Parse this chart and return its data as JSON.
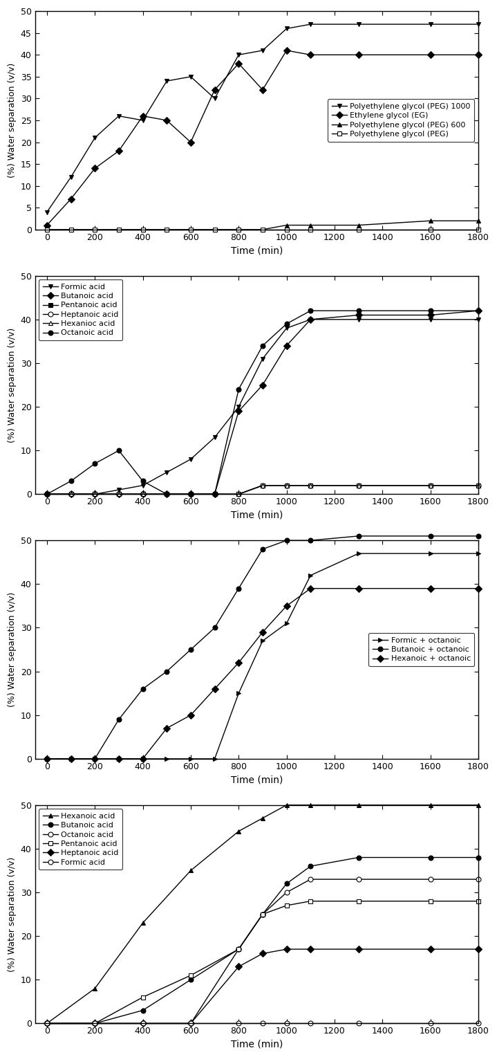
{
  "chart1": {
    "ylabel": "(%) Water separation (v/v)",
    "xlabel": "Time (min)",
    "series": [
      {
        "label": "Polyethylene glycol (PEG) 1000",
        "marker": "v",
        "filled": true,
        "x": [
          0,
          100,
          200,
          300,
          400,
          500,
          600,
          700,
          800,
          900,
          1000,
          1100,
          1300,
          1600,
          1800
        ],
        "y": [
          4,
          12,
          21,
          26,
          25,
          34,
          35,
          30,
          40,
          41,
          46,
          47,
          47,
          47,
          47
        ]
      },
      {
        "label": "Ethylene glycol (EG)",
        "marker": "D",
        "filled": true,
        "x": [
          0,
          100,
          200,
          300,
          400,
          500,
          600,
          700,
          800,
          900,
          1000,
          1100,
          1300,
          1600,
          1800
        ],
        "y": [
          1,
          7,
          14,
          18,
          26,
          25,
          20,
          32,
          38,
          32,
          41,
          40,
          40,
          40,
          40
        ]
      },
      {
        "label": "Polyethylene glycol (PEG) 600",
        "marker": "^",
        "filled": true,
        "x": [
          0,
          100,
          200,
          300,
          400,
          500,
          600,
          700,
          800,
          900,
          1000,
          1100,
          1300,
          1600,
          1800
        ],
        "y": [
          0,
          0,
          0,
          0,
          0,
          0,
          0,
          0,
          0,
          0,
          1,
          1,
          1,
          2,
          2
        ]
      },
      {
        "label": "Polyethylene glycol (PEG)",
        "marker": "s",
        "filled": false,
        "x": [
          0,
          100,
          200,
          300,
          400,
          500,
          600,
          700,
          800,
          900,
          1000,
          1100,
          1300,
          1600,
          1800
        ],
        "y": [
          0,
          0,
          0,
          0,
          0,
          0,
          0,
          0,
          0,
          0,
          0,
          0,
          0,
          0,
          0
        ]
      }
    ],
    "ylim": [
      0,
      50
    ],
    "xlim": [
      -50,
      1800
    ],
    "xticks": [
      0,
      200,
      400,
      600,
      800,
      1000,
      1200,
      1400,
      1600,
      1800
    ],
    "yticks": [
      0,
      5,
      10,
      15,
      20,
      25,
      30,
      35,
      40,
      45,
      50
    ],
    "legend_loc": "center right",
    "legend_bbox": null
  },
  "chart2": {
    "ylabel": "(%) Water separation (v/v)",
    "xlabel": "Time (min)",
    "series": [
      {
        "label": "Formic acid",
        "marker": "v",
        "filled": true,
        "x": [
          0,
          100,
          200,
          300,
          400,
          500,
          600,
          700,
          800,
          900,
          1000,
          1100,
          1300,
          1600,
          1800
        ],
        "y": [
          0,
          0,
          0,
          1,
          2,
          5,
          8,
          13,
          20,
          31,
          38,
          40,
          40,
          40,
          40
        ]
      },
      {
        "label": "Butanoic acid",
        "marker": "D",
        "filled": true,
        "x": [
          0,
          100,
          200,
          300,
          400,
          500,
          600,
          700,
          800,
          900,
          1000,
          1100,
          1300,
          1600,
          1800
        ],
        "y": [
          0,
          0,
          0,
          0,
          0,
          0,
          0,
          0,
          19,
          25,
          34,
          40,
          41,
          41,
          42
        ]
      },
      {
        "label": "Pentanoic acid",
        "marker": "s",
        "filled": true,
        "x": [
          0,
          100,
          200,
          300,
          400,
          500,
          600,
          700,
          800,
          900,
          1000,
          1100,
          1300,
          1600,
          1800
        ],
        "y": [
          0,
          0,
          0,
          0,
          0,
          0,
          0,
          0,
          0,
          2,
          2,
          2,
          2,
          2,
          2
        ]
      },
      {
        "label": "Heptanoic acid",
        "marker": "o",
        "filled": false,
        "x": [
          0,
          100,
          200,
          300,
          400,
          500,
          600,
          700,
          800,
          900,
          1000,
          1100,
          1300,
          1600,
          1800
        ],
        "y": [
          0,
          0,
          0,
          0,
          0,
          0,
          0,
          0,
          0,
          2,
          2,
          2,
          2,
          2,
          2
        ]
      },
      {
        "label": "Hexanioc acid",
        "marker": "^",
        "filled": false,
        "x": [
          0,
          100,
          200,
          300,
          400,
          500,
          600,
          700,
          800,
          900,
          1000,
          1100,
          1300,
          1600,
          1800
        ],
        "y": [
          0,
          0,
          0,
          0,
          0,
          0,
          0,
          0,
          0,
          2,
          2,
          2,
          2,
          2,
          2
        ]
      },
      {
        "label": "Octanoic acid",
        "marker": "o",
        "filled": true,
        "x": [
          0,
          100,
          200,
          300,
          400,
          500,
          600,
          700,
          800,
          900,
          1000,
          1100,
          1300,
          1600,
          1800
        ],
        "y": [
          0,
          3,
          7,
          10,
          3,
          0,
          0,
          0,
          24,
          34,
          39,
          42,
          42,
          42,
          42
        ]
      }
    ],
    "ylim": [
      0,
      50
    ],
    "xlim": [
      -50,
      1800
    ],
    "xticks": [
      0,
      200,
      400,
      600,
      800,
      1000,
      1200,
      1400,
      1600,
      1800
    ],
    "yticks": [
      0,
      10,
      20,
      30,
      40,
      50
    ],
    "legend_loc": "upper left",
    "legend_bbox": null
  },
  "chart3": {
    "ylabel": "(%) Water separation (v/v)",
    "xlabel": "Time (min)",
    "series": [
      {
        "label": "Formic + octanoic",
        "marker": ">",
        "filled": true,
        "x": [
          0,
          100,
          200,
          300,
          400,
          500,
          600,
          700,
          800,
          900,
          1000,
          1100,
          1300,
          1600,
          1800
        ],
        "y": [
          0,
          0,
          0,
          0,
          0,
          0,
          0,
          0,
          15,
          27,
          31,
          42,
          47,
          47,
          47
        ]
      },
      {
        "label": "Butanoic + octanoic",
        "marker": "o",
        "filled": true,
        "x": [
          0,
          100,
          200,
          300,
          400,
          500,
          600,
          700,
          800,
          900,
          1000,
          1100,
          1300,
          1600,
          1800
        ],
        "y": [
          0,
          0,
          0,
          9,
          16,
          20,
          25,
          30,
          39,
          48,
          50,
          50,
          51,
          51,
          51
        ]
      },
      {
        "label": "Hexanoic + octanoic",
        "marker": "D",
        "filled": true,
        "x": [
          0,
          100,
          200,
          300,
          400,
          500,
          600,
          700,
          800,
          900,
          1000,
          1100,
          1300,
          1600,
          1800
        ],
        "y": [
          0,
          0,
          0,
          0,
          0,
          7,
          10,
          16,
          22,
          29,
          35,
          39,
          39,
          39,
          39
        ]
      }
    ],
    "ylim": [
      0,
      50
    ],
    "xlim": [
      -50,
      1800
    ],
    "xticks": [
      0,
      200,
      400,
      600,
      800,
      1000,
      1200,
      1400,
      1600,
      1800
    ],
    "yticks": [
      0,
      10,
      20,
      30,
      40,
      50
    ],
    "legend_loc": "center right",
    "legend_bbox": null
  },
  "chart4": {
    "ylabel": "(%) Water separation (v/v)",
    "xlabel": "Time (min)",
    "series": [
      {
        "label": "Hexanoic acid",
        "marker": "^",
        "filled": true,
        "x": [
          0,
          200,
          400,
          600,
          800,
          900,
          1000,
          1100,
          1300,
          1600,
          1800
        ],
        "y": [
          0,
          8,
          23,
          35,
          44,
          47,
          50,
          50,
          50,
          50,
          50
        ]
      },
      {
        "label": "Butanoic acid",
        "marker": "o",
        "filled": true,
        "x": [
          0,
          200,
          400,
          600,
          800,
          900,
          1000,
          1100,
          1300,
          1600,
          1800
        ],
        "y": [
          0,
          0,
          3,
          10,
          17,
          25,
          32,
          36,
          38,
          38,
          38
        ]
      },
      {
        "label": "Octanoic acid",
        "marker": "o",
        "filled": false,
        "x": [
          0,
          200,
          400,
          600,
          800,
          900,
          1000,
          1100,
          1300,
          1600,
          1800
        ],
        "y": [
          0,
          0,
          0,
          0,
          17,
          25,
          30,
          33,
          33,
          33,
          33
        ]
      },
      {
        "label": "Pentanoic acid",
        "marker": "s",
        "filled": false,
        "x": [
          0,
          200,
          400,
          600,
          800,
          900,
          1000,
          1100,
          1300,
          1600,
          1800
        ],
        "y": [
          0,
          0,
          6,
          11,
          17,
          25,
          27,
          28,
          28,
          28,
          28
        ]
      },
      {
        "label": "Heptanoic acid",
        "marker": "D",
        "filled": true,
        "x": [
          0,
          200,
          400,
          600,
          800,
          900,
          1000,
          1100,
          1300,
          1600,
          1800
        ],
        "y": [
          0,
          0,
          0,
          0,
          13,
          16,
          17,
          17,
          17,
          17,
          17
        ]
      },
      {
        "label": "Formic acid",
        "marker": "o",
        "filled": false,
        "x": [
          0,
          200,
          400,
          600,
          800,
          900,
          1000,
          1100,
          1300,
          1600,
          1800
        ],
        "y": [
          0,
          0,
          0,
          0,
          0,
          0,
          0,
          0,
          0,
          0,
          0
        ]
      }
    ],
    "ylim": [
      0,
      50
    ],
    "xlim": [
      -50,
      1800
    ],
    "xticks": [
      0,
      200,
      400,
      600,
      800,
      1000,
      1200,
      1400,
      1600,
      1800
    ],
    "yticks": [
      0,
      10,
      20,
      30,
      40,
      50
    ],
    "legend_loc": "upper left",
    "legend_bbox": null
  }
}
